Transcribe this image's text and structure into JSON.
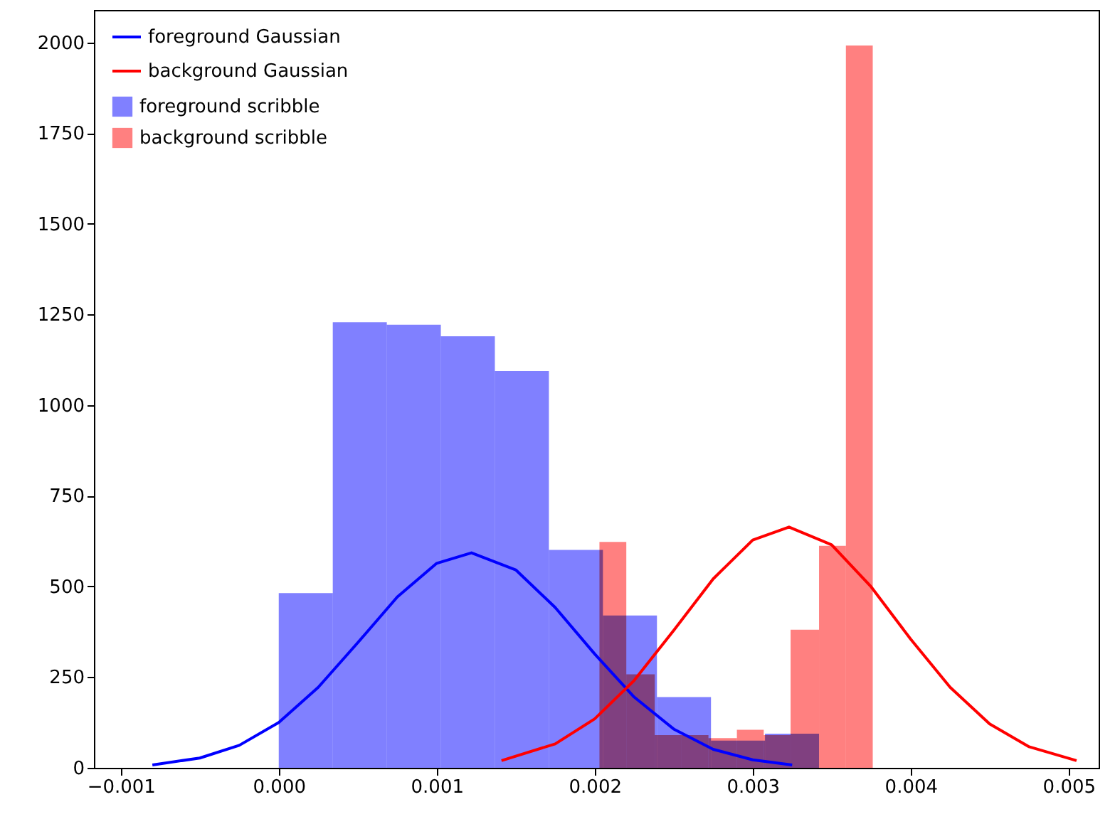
{
  "chart_data": {
    "type": "histogram",
    "legend": "top left",
    "xlim": [
      -0.00117,
      0.00519
    ],
    "ylim": [
      0,
      2090
    ],
    "xticks": [
      {
        "value": -0.001,
        "label": "−0.001"
      },
      {
        "value": 0,
        "label": "0.000"
      },
      {
        "value": 0.001,
        "label": "0.001"
      },
      {
        "value": 0.002,
        "label": "0.002"
      },
      {
        "value": 0.003,
        "label": "0.003"
      },
      {
        "value": 0.004,
        "label": "0.004"
      },
      {
        "value": 0.005,
        "label": "0.005"
      }
    ],
    "yticks": [
      0,
      250,
      500,
      750,
      1000,
      1250,
      1500,
      1750,
      2000
    ],
    "series": [
      {
        "name": "foreground Gaussian",
        "type": "line",
        "color": "#0000ff",
        "x": [
          -0.0008,
          -0.0005,
          -0.00025,
          0,
          0.00025,
          0.0005,
          0.00075,
          0.001,
          0.00122,
          0.0015,
          0.00175,
          0.002,
          0.00225,
          0.0025,
          0.00275,
          0.003,
          0.00325
        ],
        "values": [
          8,
          27,
          62,
          125,
          222,
          345,
          471,
          564,
          593,
          546,
          442,
          314,
          195,
          107,
          51,
          22,
          8
        ]
      },
      {
        "name": "background Gaussian",
        "type": "line",
        "color": "#ff0000",
        "x": [
          0.00141,
          0.00175,
          0.002,
          0.00225,
          0.0025,
          0.00275,
          0.003,
          0.00323,
          0.0035,
          0.00375,
          0.004,
          0.00425,
          0.0045,
          0.00475,
          0.00505
        ],
        "values": [
          20,
          66,
          135,
          241,
          379,
          521,
          628,
          664,
          615,
          499,
          355,
          222,
          121,
          58,
          20
        ]
      },
      {
        "name": "foreground scribble",
        "type": "histogram",
        "color": "#8080ff",
        "bins": [
          0,
          0.000342,
          0.000684,
          0.001026,
          0.001368,
          0.00171,
          0.002052,
          0.002394,
          0.002736,
          0.003078,
          0.00342
        ],
        "values": [
          482,
          1229,
          1222,
          1190,
          1094,
          601,
          420,
          195,
          75,
          94
        ]
      },
      {
        "name": "background scribble",
        "type": "histogram",
        "color": "#ff8080",
        "bins": [
          0.00203,
          0.0022,
          0.00238,
          0.00255,
          0.00272,
          0.0029,
          0.00307,
          0.00324,
          0.00342,
          0.00359,
          0.00376
        ],
        "values": [
          623,
          258,
          90,
          90,
          82,
          105,
          90,
          381,
          612,
          1992
        ]
      }
    ]
  }
}
